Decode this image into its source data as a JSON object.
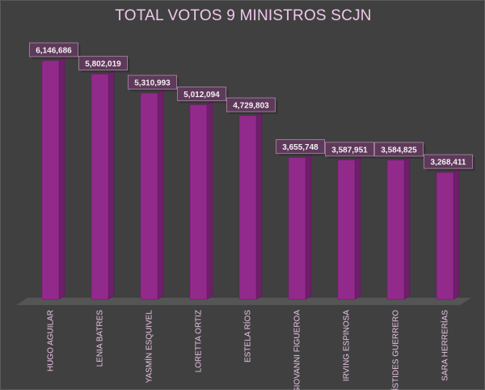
{
  "chart_data": {
    "type": "bar",
    "title": "TOTAL VOTOS 9 MINISTROS SCJN",
    "categories": [
      "HUGO AGUILAR",
      "LENIA BATRES",
      "YASMÍN ESQUIVEL",
      "LORETTA ORTIZ",
      "ESTELA RÍOS",
      "GIOVANNI FIGUEROA",
      "IRVING ESPINOSA",
      "ARÍSTIDES GUERRERO",
      "SARA HERRERÍAS"
    ],
    "values": [
      6146686,
      5802019,
      5310993,
      5012094,
      4729803,
      3655748,
      3587951,
      3584825,
      3268411
    ],
    "data_labels": [
      "6,146,686",
      "5,802,019",
      "5,310,993",
      "5,012,094",
      "4,729,803",
      "3,655,748",
      "3,587,951",
      "3,584,825",
      "3,268,411"
    ],
    "xlabel": "",
    "ylabel": "",
    "grid": false,
    "legend": "none",
    "style": "3d-column",
    "colors": {
      "background": "#404040",
      "bar_front": "#922a8c",
      "bar_side": "#6e1f69",
      "floor": "#555555",
      "title": "#f0c8ec",
      "label_box": "#5e3a5a",
      "label_border": "#9a7a96"
    }
  }
}
